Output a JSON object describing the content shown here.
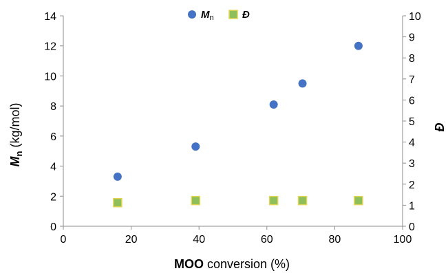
{
  "chart_data": {
    "type": "scatter",
    "x_axis": {
      "label_bold": "MOO",
      "label_rest": " conversion  (%)",
      "range": [
        0,
        100
      ],
      "ticks": [
        "0",
        "20",
        "40",
        "60",
        "80",
        "100"
      ]
    },
    "y_axis_left": {
      "label_main": "M",
      "label_sub": "n",
      "label_rest": " (kg/mol)",
      "range": [
        0,
        14
      ],
      "ticks": [
        "0",
        "2",
        "4",
        "6",
        "8",
        "10",
        "12",
        "14"
      ]
    },
    "y_axis_right": {
      "label": "Đ",
      "range": [
        0,
        10
      ],
      "ticks": [
        "0",
        "1",
        "2",
        "3",
        "4",
        "5",
        "6",
        "7",
        "8",
        "9",
        "10"
      ]
    },
    "legend": {
      "placement": "top-center",
      "items": [
        {
          "label_main": "M",
          "label_sub": "n"
        },
        {
          "label_main": "Đ",
          "label_sub": ""
        }
      ]
    },
    "series": [
      {
        "marker": "circle",
        "color": "#4472C4",
        "axis": "left",
        "x": [
          16,
          39,
          62,
          70.5,
          87
        ],
        "y": [
          3.3,
          5.3,
          8.1,
          9.5,
          12.0
        ]
      },
      {
        "marker": "square",
        "color": "#8FBF5A",
        "stroke": "#E3D453",
        "axis": "right",
        "x": [
          16,
          39,
          62,
          70.5,
          87
        ],
        "y": [
          1.12,
          1.22,
          1.22,
          1.22,
          1.22
        ]
      }
    ],
    "grid": false
  }
}
